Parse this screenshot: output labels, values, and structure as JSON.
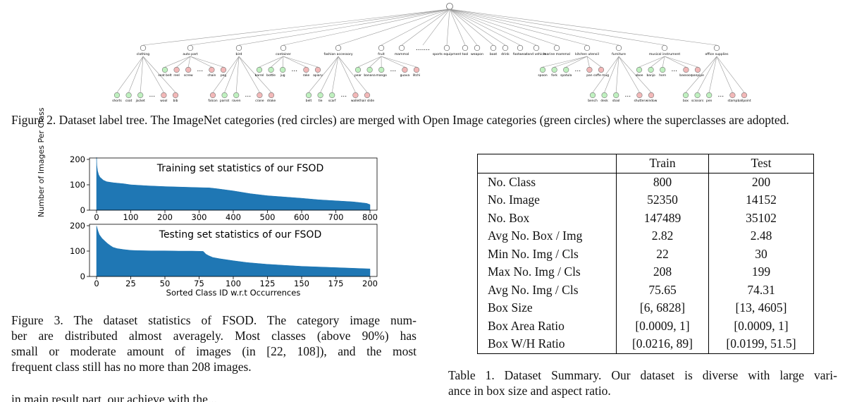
{
  "tree": {
    "parents": [
      "clothing",
      "auto part",
      "bird",
      "container",
      "fashion accessory",
      "fruit",
      "mammal",
      ".......",
      "sports equipment",
      "tool",
      "weapon",
      "boat",
      "drink",
      "footwear",
      "land vehicle",
      "marine mammal",
      "kitchen utensil",
      "furniture",
      "musical instrument",
      "office supplies"
    ],
    "groups": [
      {
        "labels": [
          "shorts",
          "coat",
          "jacket",
          "...",
          "wool",
          "bib"
        ],
        "colors": [
          "g",
          "g",
          "g",
          "",
          "r",
          "r"
        ]
      },
      {
        "labels": [
          "seat belt",
          "reel",
          "screw",
          "...",
          "chain",
          "peg"
        ],
        "colors": [
          "g",
          "r",
          "r",
          "",
          "r",
          "r"
        ]
      },
      {
        "labels": [
          "falcon",
          "parrot",
          "raven",
          "...",
          "crane",
          "drake"
        ],
        "colors": [
          "r",
          "g",
          "g",
          "",
          "r",
          "r"
        ]
      },
      {
        "labels": [
          "barrel",
          "bottle",
          "jug",
          "...",
          "rake",
          "apiary"
        ],
        "colors": [
          "g",
          "g",
          "g",
          "",
          "r",
          "r"
        ]
      },
      {
        "labels": [
          "belt",
          "tie",
          "scarf",
          "...",
          "wallet",
          "hair slide"
        ],
        "colors": [
          "g",
          "g",
          "g",
          "",
          "r",
          "r"
        ]
      },
      {
        "labels": [
          "pear",
          "banana",
          "mango",
          "...",
          "guava",
          "litchi"
        ],
        "colors": [
          "g",
          "g",
          "g",
          "",
          "r",
          "r"
        ]
      },
      {
        "labels": [
          "spoon",
          "fork",
          "spatula",
          "...",
          "pan",
          "coffe mug"
        ],
        "colors": [
          "g",
          "g",
          "g",
          "",
          "r",
          "r"
        ]
      },
      {
        "labels": [
          "bench",
          "desk",
          "stool",
          "...",
          "shutter",
          "window"
        ],
        "colors": [
          "g",
          "g",
          "g",
          "",
          "r",
          "r"
        ]
      },
      {
        "labels": [
          "oboe",
          "banjo",
          "horn",
          "...",
          "bassoon",
          "panpipe"
        ],
        "colors": [
          "g",
          "g",
          "g",
          "",
          "r",
          "r"
        ]
      },
      {
        "labels": [
          "box",
          "scissors",
          "pen",
          "...",
          "stamp",
          "ballpoint"
        ],
        "colors": [
          "g",
          "g",
          "g",
          "",
          "r",
          "r"
        ]
      }
    ],
    "colors": {
      "green": "#bff0bf",
      "red": "#f2b8b8",
      "root": "#ffffff"
    }
  },
  "fig2_caption": "Figure 2. Dataset label tree.  The ImageNet categories (red circles) are merged with Open Image categories (green circles) where the superclasses are adopted.",
  "chart_data": [
    {
      "type": "area",
      "title": "Training set statistics of our FSOD",
      "ylabel": "Number of Images Per Class",
      "xlabel": "",
      "xlim": [
        0,
        800
      ],
      "ylim": [
        0,
        200
      ],
      "xticks": [
        0,
        100,
        200,
        300,
        400,
        500,
        600,
        700,
        800
      ],
      "yticks": [
        0,
        100,
        200
      ],
      "x": [
        0,
        1,
        3,
        6,
        10,
        20,
        30,
        50,
        80,
        100,
        150,
        200,
        250,
        300,
        330,
        350,
        400,
        450,
        500,
        550,
        600,
        650,
        700,
        750,
        790,
        800
      ],
      "values": [
        208,
        175,
        155,
        140,
        130,
        118,
        112,
        108,
        104,
        100,
        96,
        93,
        91,
        89,
        88,
        85,
        76,
        65,
        57,
        52,
        47,
        41,
        37,
        33,
        27,
        22
      ],
      "color": "#1f77b4"
    },
    {
      "type": "area",
      "title": "Testing set statistics of our FSOD",
      "ylabel": "Number of Images Per Class",
      "xlabel": "Sorted Class ID w.r.t Occurrences",
      "xlim": [
        0,
        200
      ],
      "ylim": [
        0,
        200
      ],
      "xticks": [
        0,
        25,
        50,
        75,
        100,
        125,
        150,
        175,
        200
      ],
      "yticks": [
        0,
        100,
        200
      ],
      "x": [
        0,
        1,
        2,
        4,
        6,
        8,
        10,
        12,
        15,
        20,
        25,
        30,
        40,
        50,
        60,
        70,
        78,
        80,
        82,
        85,
        90,
        100,
        110,
        125,
        150,
        175,
        200
      ],
      "values": [
        199,
        180,
        165,
        150,
        140,
        130,
        122,
        115,
        110,
        106,
        103,
        102,
        101,
        101,
        100,
        100,
        99,
        88,
        82,
        75,
        70,
        62,
        55,
        48,
        40,
        35,
        30
      ],
      "color": "#1f77b4"
    }
  ],
  "fig3_caption_lines": [
    "Figure 3. The dataset statistics of FSOD. The category image num-",
    "ber are distributed almost averagely. Most classes (above 90%) has",
    "small or moderate amount of images (in [22, 108]), and the most",
    "frequent class still has no more than 208 images."
  ],
  "table": {
    "headers": [
      "",
      "Train",
      "Test"
    ],
    "rows": [
      [
        "No. Class",
        "800",
        "200"
      ],
      [
        "No. Image",
        "52350",
        "14152"
      ],
      [
        "No. Box",
        "147489",
        "35102"
      ],
      [
        "Avg No. Box / Img",
        "2.82",
        "2.48"
      ],
      [
        "Min No. Img / Cls",
        "22",
        "30"
      ],
      [
        "Max No. Img / Cls",
        "208",
        "199"
      ],
      [
        "Avg No. Img / Cls",
        "75.65",
        "74.31"
      ],
      [
        "Box Size",
        "[6, 6828]",
        "[13, 4605]"
      ],
      [
        "Box Area Ratio",
        "[0.0009, 1]",
        "[0.0009, 1]"
      ],
      [
        "Box W/H Ratio",
        "[0.0216, 89]",
        "[0.0199, 51.5]"
      ]
    ]
  },
  "table_caption_lines": [
    "Table 1. Dataset Summary. Our dataset is diverse with large vari-",
    "ance in box size and aspect ratio."
  ],
  "body_fragment": "in main result part, our achieve with the..."
}
